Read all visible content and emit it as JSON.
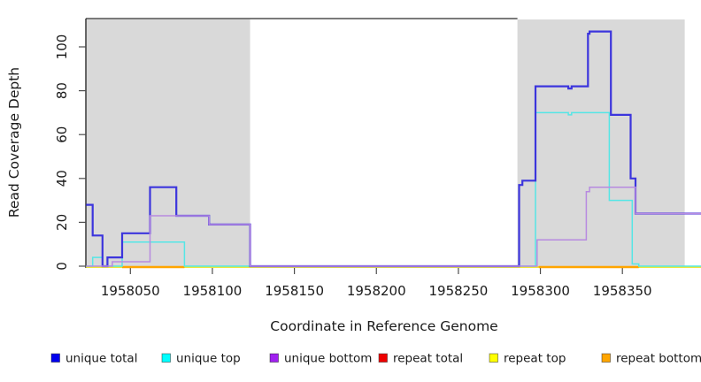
{
  "chart_data": {
    "type": "line",
    "subtype": "step-coverage-plot",
    "title": "",
    "xlabel": "Coordinate in Reference Genome",
    "ylabel": "Read Coverage Depth",
    "x_ticks": [
      1958050,
      1958100,
      1958150,
      1958200,
      1958250,
      1958300,
      1958350
    ],
    "y_ticks": [
      0,
      20,
      40,
      60,
      80,
      100
    ],
    "xlim": [
      1958023,
      1958398
    ],
    "ylim": [
      0,
      113
    ],
    "grid": false,
    "legend_position": "bottom",
    "shaded_region_color": "#d9d9d9",
    "shaded_regions": [
      [
        1958023,
        1958123
      ],
      [
        1958286,
        1958388
      ]
    ],
    "baseline": {
      "color": "#90ee90",
      "note": "pale green zero baseline across full width"
    },
    "series": [
      {
        "name": "unique total",
        "legend_color": "#0000ee",
        "line_color": "#3c35dd",
        "line_width": 2.2,
        "paths": [
          [
            [
              1958023,
              28
            ],
            [
              1958027,
              28
            ],
            [
              1958027,
              14
            ],
            [
              1958033,
              14
            ],
            [
              1958033,
              0
            ],
            [
              1958036,
              0
            ],
            [
              1958036,
              4
            ],
            [
              1958045,
              4
            ],
            [
              1958045,
              15
            ],
            [
              1958062,
              15
            ],
            [
              1958062,
              36
            ],
            [
              1958078,
              36
            ],
            [
              1958078,
              23
            ],
            [
              1958098,
              23
            ],
            [
              1958098,
              19
            ],
            [
              1958123,
              19
            ],
            [
              1958123,
              0
            ],
            [
              1958287,
              0
            ],
            [
              1958287,
              37
            ],
            [
              1958289,
              37
            ],
            [
              1958289,
              39
            ],
            [
              1958297,
              39
            ],
            [
              1958297,
              82
            ],
            [
              1958317,
              82
            ],
            [
              1958317,
              81
            ],
            [
              1958319,
              81
            ],
            [
              1958319,
              82
            ],
            [
              1958329,
              82
            ],
            [
              1958329,
              106
            ],
            [
              1958330,
              106
            ],
            [
              1958330,
              107
            ],
            [
              1958343,
              107
            ],
            [
              1958343,
              69
            ],
            [
              1958355,
              69
            ],
            [
              1958355,
              40
            ],
            [
              1958358,
              40
            ],
            [
              1958358,
              24
            ],
            [
              1958398,
              24
            ]
          ]
        ]
      },
      {
        "name": "unique top",
        "legend_color": "#00ffff",
        "line_color": "#55e6e6",
        "line_width": 1.5,
        "paths": [
          [
            [
              1958023,
              0
            ],
            [
              1958027,
              0
            ],
            [
              1958027,
              4
            ],
            [
              1958033,
              4
            ],
            [
              1958033,
              0
            ],
            [
              1958045,
              0
            ],
            [
              1958045,
              11
            ],
            [
              1958083,
              11
            ],
            [
              1958083,
              0
            ],
            [
              1958297,
              0
            ],
            [
              1958297,
              70
            ],
            [
              1958317,
              70
            ],
            [
              1958317,
              69
            ],
            [
              1958319,
              69
            ],
            [
              1958319,
              70
            ],
            [
              1958342,
              70
            ],
            [
              1958342,
              30
            ],
            [
              1958356,
              30
            ],
            [
              1958356,
              1
            ],
            [
              1958360,
              1
            ],
            [
              1958360,
              0
            ],
            [
              1958398,
              0
            ]
          ]
        ]
      },
      {
        "name": "unique bottom",
        "legend_color": "#a020f0",
        "line_color": "#b78ae0",
        "line_width": 1.5,
        "paths": [
          [
            [
              1958023,
              0
            ],
            [
              1958039,
              0
            ],
            [
              1958039,
              2
            ],
            [
              1958062,
              2
            ],
            [
              1958062,
              23
            ],
            [
              1958098,
              23
            ],
            [
              1958098,
              19
            ],
            [
              1958123,
              19
            ],
            [
              1958123,
              0
            ],
            [
              1958298,
              0
            ],
            [
              1958298,
              12
            ],
            [
              1958328,
              12
            ],
            [
              1958328,
              34
            ],
            [
              1958330,
              34
            ],
            [
              1958330,
              36
            ],
            [
              1958358,
              36
            ],
            [
              1958358,
              24
            ],
            [
              1958398,
              24
            ]
          ]
        ]
      },
      {
        "name": "repeat total",
        "legend_color": "#ee0000",
        "line_color": "#ee0000",
        "line_width": 1.2,
        "paths": [
          [
            [
              1958023,
              0
            ],
            [
              1958398,
              0
            ]
          ]
        ]
      },
      {
        "name": "repeat top",
        "legend_color": "#ffff00",
        "line_color": "#ffff00",
        "line_width": 1.2,
        "paths": [
          [
            [
              1958023,
              0
            ],
            [
              1958398,
              0
            ]
          ]
        ]
      },
      {
        "name": "repeat bottom",
        "legend_color": "#ffa500",
        "line_color": "#ffa500",
        "line_width": 2.4,
        "paths": [
          [
            [
              1958045,
              0
            ],
            [
              1958083,
              0
            ]
          ],
          [
            [
              1958299,
              0
            ],
            [
              1958360,
              0
            ]
          ]
        ]
      }
    ]
  }
}
